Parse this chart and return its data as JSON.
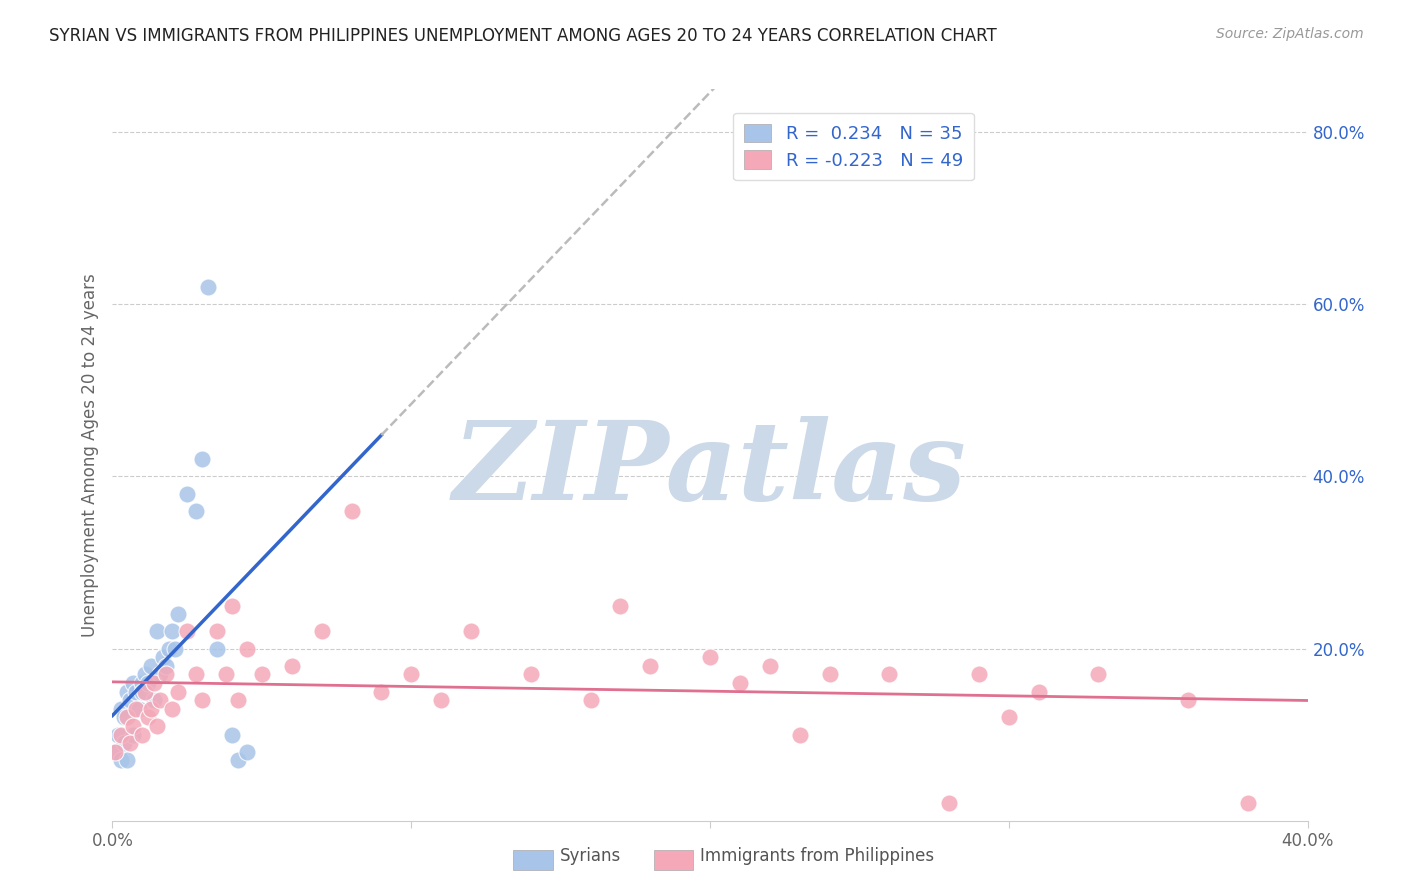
{
  "title": "SYRIAN VS IMMIGRANTS FROM PHILIPPINES UNEMPLOYMENT AMONG AGES 20 TO 24 YEARS CORRELATION CHART",
  "source": "Source: ZipAtlas.com",
  "ylabel": "Unemployment Among Ages 20 to 24 years",
  "xlim": [
    0.0,
    0.4
  ],
  "ylim": [
    0.0,
    0.85
  ],
  "syrians_R": 0.234,
  "syrians_N": 35,
  "philippines_R": -0.223,
  "philippines_N": 49,
  "syrians_color": "#a8c4e8",
  "philippines_color": "#f4a8b8",
  "trend_syrian_color": "#3366cc",
  "trend_philippines_color": "#e07090",
  "trend_dashed_color": "#bbbbbb",
  "watermark": "ZIPatlas",
  "watermark_color": "#ccd9e8",
  "syrians_x": [
    0.001,
    0.002,
    0.003,
    0.003,
    0.004,
    0.004,
    0.005,
    0.005,
    0.006,
    0.007,
    0.007,
    0.008,
    0.009,
    0.01,
    0.01,
    0.011,
    0.012,
    0.013,
    0.014,
    0.015,
    0.016,
    0.017,
    0.018,
    0.019,
    0.02,
    0.021,
    0.022,
    0.025,
    0.028,
    0.03,
    0.032,
    0.035,
    0.04,
    0.042,
    0.045
  ],
  "syrians_y": [
    0.08,
    0.1,
    0.13,
    0.07,
    0.12,
    0.09,
    0.15,
    0.07,
    0.14,
    0.16,
    0.1,
    0.15,
    0.13,
    0.16,
    0.15,
    0.17,
    0.16,
    0.18,
    0.14,
    0.22,
    0.17,
    0.19,
    0.18,
    0.2,
    0.22,
    0.2,
    0.24,
    0.38,
    0.36,
    0.42,
    0.62,
    0.2,
    0.1,
    0.07,
    0.08
  ],
  "philippines_x": [
    0.001,
    0.003,
    0.005,
    0.006,
    0.007,
    0.008,
    0.01,
    0.011,
    0.012,
    0.013,
    0.014,
    0.015,
    0.016,
    0.018,
    0.02,
    0.022,
    0.025,
    0.028,
    0.03,
    0.035,
    0.038,
    0.04,
    0.042,
    0.045,
    0.05,
    0.06,
    0.07,
    0.08,
    0.09,
    0.1,
    0.11,
    0.12,
    0.14,
    0.16,
    0.17,
    0.18,
    0.2,
    0.21,
    0.22,
    0.23,
    0.24,
    0.26,
    0.28,
    0.29,
    0.3,
    0.31,
    0.33,
    0.36,
    0.38
  ],
  "philippines_y": [
    0.08,
    0.1,
    0.12,
    0.09,
    0.11,
    0.13,
    0.1,
    0.15,
    0.12,
    0.13,
    0.16,
    0.11,
    0.14,
    0.17,
    0.13,
    0.15,
    0.22,
    0.17,
    0.14,
    0.22,
    0.17,
    0.25,
    0.14,
    0.2,
    0.17,
    0.18,
    0.22,
    0.36,
    0.15,
    0.17,
    0.14,
    0.22,
    0.17,
    0.14,
    0.25,
    0.18,
    0.19,
    0.16,
    0.18,
    0.1,
    0.17,
    0.17,
    0.02,
    0.17,
    0.12,
    0.15,
    0.17,
    0.14,
    0.02
  ]
}
